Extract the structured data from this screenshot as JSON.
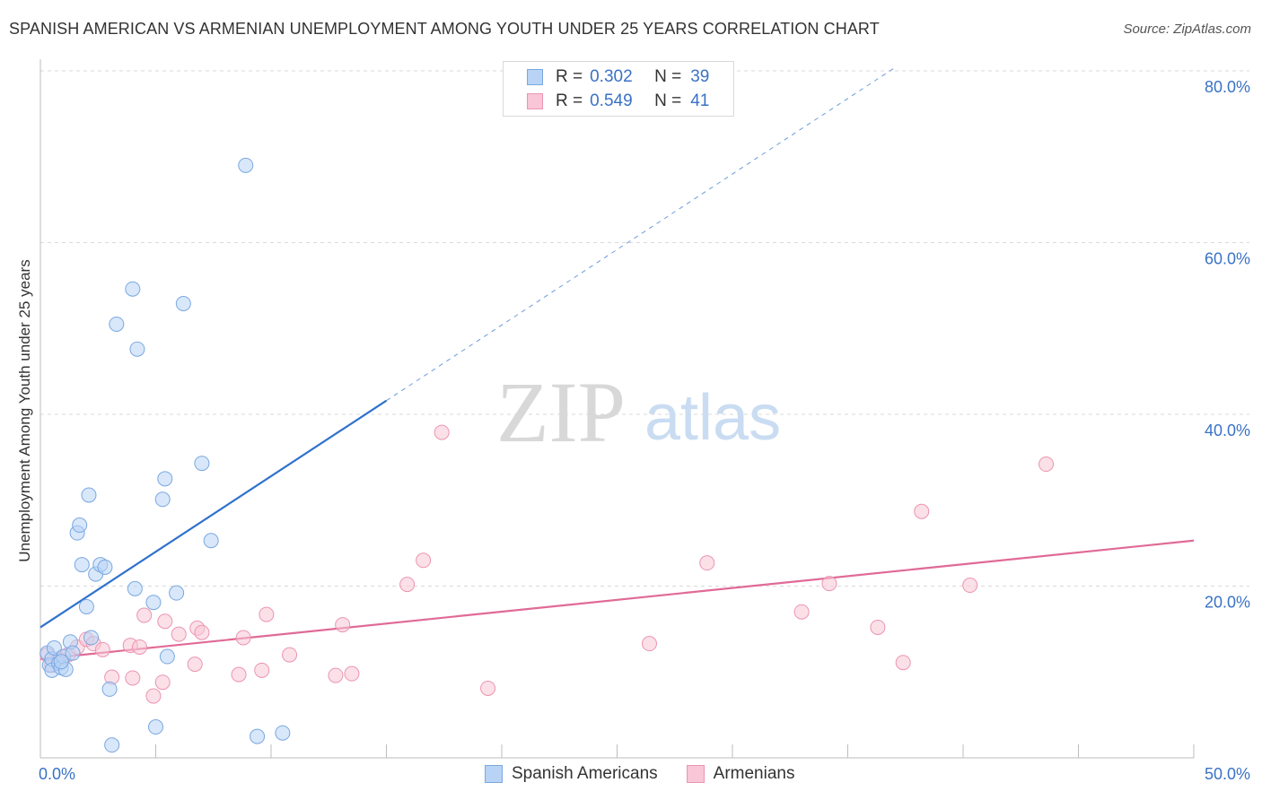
{
  "header": {
    "title": "SPANISH AMERICAN VS ARMENIAN UNEMPLOYMENT AMONG YOUTH UNDER 25 YEARS CORRELATION CHART",
    "source": "Source: ZipAtlas.com"
  },
  "watermark": {
    "zip": "ZIP",
    "atlas": "atlas"
  },
  "legend": {
    "rows": [
      {
        "r_label": "R =",
        "r_value": "0.302",
        "n_label": "N =",
        "n_value": "39"
      },
      {
        "r_label": "R =",
        "r_value": "0.549",
        "n_label": "N =",
        "n_value": "41"
      }
    ]
  },
  "bottom_legend": [
    "Spanish Americans",
    "Armenians"
  ],
  "colors": {
    "blue_fill": "#b8d3f5",
    "blue_stroke": "#7aa8e0",
    "blue_line": "#2f72cc",
    "pink_fill": "#f8c6d6",
    "pink_stroke": "#ec94b2",
    "pink_line": "#e06a96",
    "grid": "#d9d9d9",
    "tick_text": "#3a72c5"
  },
  "chart_data": {
    "type": "scatter",
    "title": "SPANISH AMERICAN VS ARMENIAN UNEMPLOYMENT AMONG YOUTH UNDER 25 YEARS CORRELATION CHART",
    "xlabel": "",
    "ylabel": "Unemployment Among Youth under 25 years",
    "xlim": [
      0,
      50
    ],
    "ylim": [
      0,
      80
    ],
    "x_tick_labels": [
      "0.0%",
      "50.0%"
    ],
    "y_ticks": [
      20,
      40,
      60,
      80
    ],
    "y_tick_labels": [
      "20.0%",
      "40.0%",
      "60.0%",
      "80.0%"
    ],
    "grid": true,
    "series": [
      {
        "name": "Spanish Americans",
        "points": [
          [
            0.3,
            12.2
          ],
          [
            0.4,
            10.8
          ],
          [
            0.5,
            11.5
          ],
          [
            0.5,
            10.2
          ],
          [
            0.6,
            12.8
          ],
          [
            0.8,
            11.0
          ],
          [
            0.9,
            10.5
          ],
          [
            1.0,
            11.8
          ],
          [
            1.1,
            10.3
          ],
          [
            1.3,
            13.5
          ],
          [
            1.4,
            12.2
          ],
          [
            1.6,
            26.2
          ],
          [
            1.7,
            27.1
          ],
          [
            1.8,
            22.5
          ],
          [
            2.0,
            17.6
          ],
          [
            2.1,
            30.6
          ],
          [
            2.2,
            14.0
          ],
          [
            2.4,
            21.4
          ],
          [
            2.6,
            22.5
          ],
          [
            2.8,
            22.2
          ],
          [
            3.0,
            8.0
          ],
          [
            3.1,
            1.5
          ],
          [
            3.3,
            50.5
          ],
          [
            4.0,
            54.6
          ],
          [
            4.1,
            19.7
          ],
          [
            4.2,
            47.6
          ],
          [
            4.9,
            18.1
          ],
          [
            5.0,
            3.6
          ],
          [
            5.3,
            30.1
          ],
          [
            5.4,
            32.5
          ],
          [
            5.5,
            11.8
          ],
          [
            5.9,
            19.2
          ],
          [
            6.2,
            52.9
          ],
          [
            7.0,
            34.3
          ],
          [
            7.4,
            25.3
          ],
          [
            8.9,
            69.0
          ],
          [
            9.4,
            2.5
          ],
          [
            10.5,
            2.9
          ],
          [
            0.9,
            11.2
          ]
        ],
        "trendline": {
          "x": [
            0,
            15
          ],
          "y": [
            15.2,
            41.6
          ]
        },
        "trendline_extension": {
          "x": [
            15,
            37
          ],
          "y": [
            41.6,
            80.3
          ]
        }
      },
      {
        "name": "Armenians",
        "points": [
          [
            0.3,
            12.0
          ],
          [
            0.5,
            10.8
          ],
          [
            0.8,
            11.5
          ],
          [
            1.2,
            12.0
          ],
          [
            1.6,
            12.9
          ],
          [
            2.0,
            13.8
          ],
          [
            2.3,
            13.3
          ],
          [
            2.7,
            12.6
          ],
          [
            3.1,
            9.4
          ],
          [
            3.9,
            13.1
          ],
          [
            4.0,
            9.3
          ],
          [
            4.3,
            12.9
          ],
          [
            4.5,
            16.6
          ],
          [
            4.9,
            7.2
          ],
          [
            5.3,
            8.8
          ],
          [
            5.4,
            15.9
          ],
          [
            6.0,
            14.4
          ],
          [
            6.7,
            10.9
          ],
          [
            6.8,
            15.1
          ],
          [
            7.0,
            14.6
          ],
          [
            8.6,
            9.7
          ],
          [
            8.8,
            14.0
          ],
          [
            9.6,
            10.2
          ],
          [
            9.8,
            16.7
          ],
          [
            10.8,
            12.0
          ],
          [
            12.8,
            9.6
          ],
          [
            13.1,
            15.5
          ],
          [
            13.5,
            9.8
          ],
          [
            15.9,
            20.2
          ],
          [
            16.6,
            23.0
          ],
          [
            17.4,
            37.9
          ],
          [
            19.4,
            8.1
          ],
          [
            26.4,
            13.3
          ],
          [
            28.9,
            22.7
          ],
          [
            33.0,
            17.0
          ],
          [
            34.2,
            20.3
          ],
          [
            36.3,
            15.2
          ],
          [
            37.4,
            11.1
          ],
          [
            38.2,
            28.7
          ],
          [
            40.3,
            20.1
          ],
          [
            43.6,
            34.2
          ]
        ],
        "trendline": {
          "x": [
            0,
            50
          ],
          "y": [
            11.5,
            25.3
          ]
        }
      }
    ]
  }
}
